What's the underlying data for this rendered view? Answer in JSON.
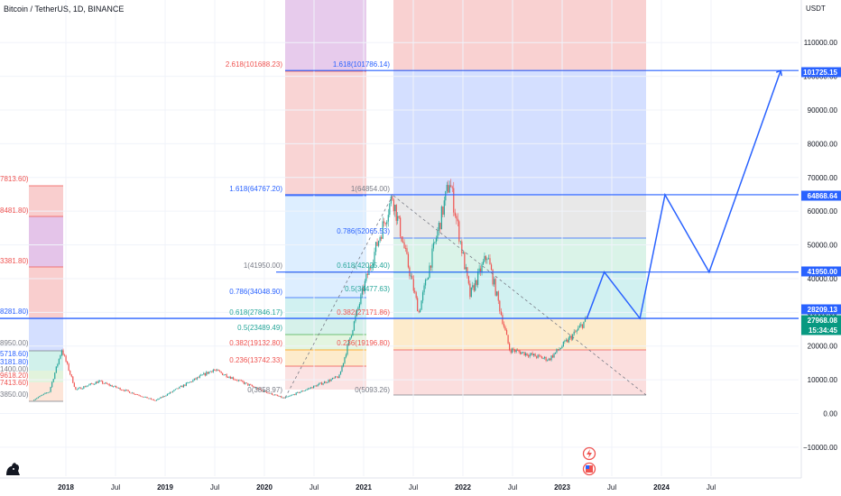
{
  "symbol_title": "Bitcoin / TetherUS, 1D, BINANCE",
  "colors": {
    "line": "#2962ff",
    "candle_up": "#26a69a",
    "candle_down": "#ef5350",
    "purple_zone": "#e1bee7",
    "red_zone": "#f8c9c9",
    "blue_zone": "#cfdcff",
    "gray_band": "#e6e6e6",
    "green_band": "#d2f0e8",
    "teal_band": "#ccf0ef",
    "orange_band": "#fde9c5"
  },
  "y_axis": {
    "unit": "USDT",
    "ticks": [
      "110000.00",
      "100000.00",
      "90000.00",
      "80000.00",
      "70000.00",
      "60000.00",
      "50000.00",
      "40000.00",
      "30000.00",
      "20000.00",
      "10000.00",
      "0.00",
      "−10000.00"
    ]
  },
  "x_axis": {
    "ticks": [
      "2018",
      "Jul",
      "2019",
      "Jul",
      "2020",
      "Jul",
      "2021",
      "Jul",
      "2022",
      "Jul",
      "2023",
      "Jul",
      "2024",
      "Jul"
    ]
  },
  "price_tags": [
    {
      "label": "101725.15",
      "style": "blue"
    },
    {
      "label": "64868.64",
      "style": "blue"
    },
    {
      "label": "41950.00",
      "style": "blue"
    },
    {
      "label": "28209.13",
      "style": "blue"
    },
    {
      "label": "27968.08",
      "style": "green"
    },
    {
      "label": "15:34:45",
      "style": "green"
    }
  ],
  "fib_labels": [
    {
      "text": "2.618(101688.23)",
      "tone": "red"
    },
    {
      "text": "1.618(101786.14)",
      "tone": "blue"
    },
    {
      "text": "1.618(64767.20)",
      "tone": "blue"
    },
    {
      "text": "1(64854.00)",
      "tone": "gray"
    },
    {
      "text": "0.786(52065.53)",
      "tone": "blue"
    },
    {
      "text": "1(41950.00)",
      "tone": "gray"
    },
    {
      "text": "0.618(42025.40)",
      "tone": "green"
    },
    {
      "text": "0.786(34048.90)",
      "tone": "blue"
    },
    {
      "text": "0.5(34477.63)",
      "tone": "green"
    },
    {
      "text": "0.618(27846.17)",
      "tone": "green"
    },
    {
      "text": "0.382(27171.86)",
      "tone": "red"
    },
    {
      "text": "0.5(23489.49)",
      "tone": "green"
    },
    {
      "text": "0.382(19132.80)",
      "tone": "red"
    },
    {
      "text": "0.236(19196.80)",
      "tone": "red"
    },
    {
      "text": "0.236(13742.33)",
      "tone": "red"
    },
    {
      "text": "0(3858.97)",
      "tone": "gray"
    },
    {
      "text": "0(5093.26)",
      "tone": "gray"
    },
    {
      "text": "7813.60)",
      "tone": "red"
    },
    {
      "text": "8481.80)",
      "tone": "red"
    },
    {
      "text": "3381.80)",
      "tone": "red"
    },
    {
      "text": "8281.80)",
      "tone": "blue"
    },
    {
      "text": "8950.00)",
      "tone": "gray"
    },
    {
      "text": "5718.60)",
      "tone": "blue"
    },
    {
      "text": "3181.80)",
      "tone": "blue"
    },
    {
      "text": "1400.00)",
      "tone": "gray"
    },
    {
      "text": "9618.20)",
      "tone": "red"
    },
    {
      "text": "7413.60)",
      "tone": "red"
    },
    {
      "text": "3850.00)",
      "tone": "gray"
    }
  ],
  "chart_data": {
    "type": "candlestick",
    "title": "Bitcoin / TetherUS, 1D, BINANCE",
    "ylabel": "USDT",
    "ylim": [
      -15000,
      117000
    ],
    "x_ticks": [
      "2018",
      "Jul",
      "2019",
      "Jul",
      "2020",
      "Jul",
      "2021",
      "Jul",
      "2022",
      "Jul",
      "2023",
      "Jul",
      "2024",
      "Jul"
    ],
    "price_path": [
      {
        "date": "2017-09-01",
        "value": 4000
      },
      {
        "date": "2017-11-01",
        "value": 6500
      },
      {
        "date": "2017-12-17",
        "value": 19000
      },
      {
        "date": "2018-02-06",
        "value": 7000
      },
      {
        "date": "2018-05-01",
        "value": 9500
      },
      {
        "date": "2018-11-25",
        "value": 3800
      },
      {
        "date": "2019-06-26",
        "value": 13000
      },
      {
        "date": "2019-12-15",
        "value": 7000
      },
      {
        "date": "2020-03-12",
        "value": 4500
      },
      {
        "date": "2020-10-01",
        "value": 11000
      },
      {
        "date": "2021-01-08",
        "value": 40000
      },
      {
        "date": "2021-04-14",
        "value": 64500
      },
      {
        "date": "2021-07-20",
        "value": 30000
      },
      {
        "date": "2021-11-10",
        "value": 69000
      },
      {
        "date": "2022-01-24",
        "value": 35000
      },
      {
        "date": "2022-03-28",
        "value": 47000
      },
      {
        "date": "2022-06-18",
        "value": 19000
      },
      {
        "date": "2022-11-09",
        "value": 16000
      },
      {
        "date": "2023-02-15",
        "value": 24000
      },
      {
        "date": "2023-03-28",
        "value": 27968.08
      }
    ],
    "projection_path": [
      {
        "date": "2023-03-28",
        "value": 27968.08
      },
      {
        "date": "2023-06-01",
        "value": 41950
      },
      {
        "date": "2023-10-10",
        "value": 28209.13
      },
      {
        "date": "2024-01-10",
        "value": 64868.64
      },
      {
        "date": "2024-06-20",
        "value": 41950
      },
      {
        "date": "2025-03-10",
        "value": 101725.15
      }
    ],
    "horizontal_levels": [
      101725.15,
      64868.64,
      41950.0,
      28209.13
    ],
    "last_price": 27968.08
  }
}
